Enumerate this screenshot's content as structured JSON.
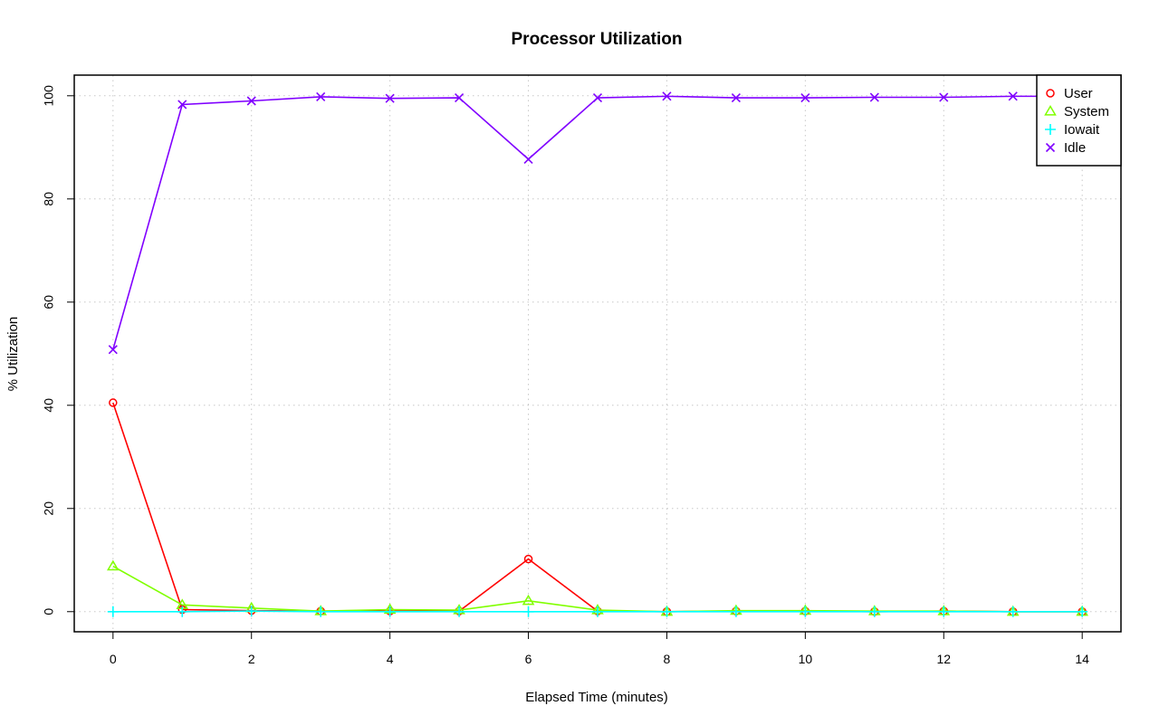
{
  "chart_data": {
    "type": "line",
    "title": "Processor Utilization",
    "xlabel": "Elapsed Time (minutes)",
    "ylabel": "% Utilization",
    "x": [
      0,
      1,
      2,
      3,
      4,
      5,
      6,
      7,
      8,
      9,
      10,
      11,
      12,
      13,
      14
    ],
    "xlim": [
      -0.56,
      14.56
    ],
    "ylim": [
      -3.9,
      104
    ],
    "xticks": [
      "0",
      "2",
      "4",
      "6",
      "8",
      "10",
      "12",
      "14"
    ],
    "yticks": [
      "0",
      "20",
      "40",
      "60",
      "80",
      "100"
    ],
    "grid": true,
    "legend_position": "top-right",
    "series": [
      {
        "name": "User",
        "color": "#ff0000",
        "marker": "circle",
        "values": [
          40.5,
          0.4,
          0.2,
          0.1,
          0.1,
          0.1,
          10.2,
          0.1,
          0.0,
          0.1,
          0.1,
          0.0,
          0.1,
          0.0,
          0.0
        ]
      },
      {
        "name": "System",
        "color": "#80ff00",
        "marker": "triangle",
        "values": [
          8.8,
          1.3,
          0.7,
          0.1,
          0.4,
          0.3,
          2.1,
          0.3,
          0.0,
          0.2,
          0.2,
          0.1,
          0.1,
          0.0,
          0.0
        ]
      },
      {
        "name": "Iowait",
        "color": "#00ffff",
        "marker": "plus",
        "values": [
          0.0,
          0.0,
          0.1,
          0.0,
          0.0,
          0.0,
          0.0,
          0.0,
          0.0,
          0.0,
          0.0,
          0.0,
          0.0,
          0.0,
          0.0
        ]
      },
      {
        "name": "Idle",
        "color": "#8000ff",
        "marker": "x",
        "values": [
          50.8,
          98.3,
          99.0,
          99.8,
          99.5,
          99.6,
          87.7,
          99.6,
          99.9,
          99.6,
          99.6,
          99.7,
          99.7,
          99.9,
          99.9
        ]
      }
    ]
  }
}
